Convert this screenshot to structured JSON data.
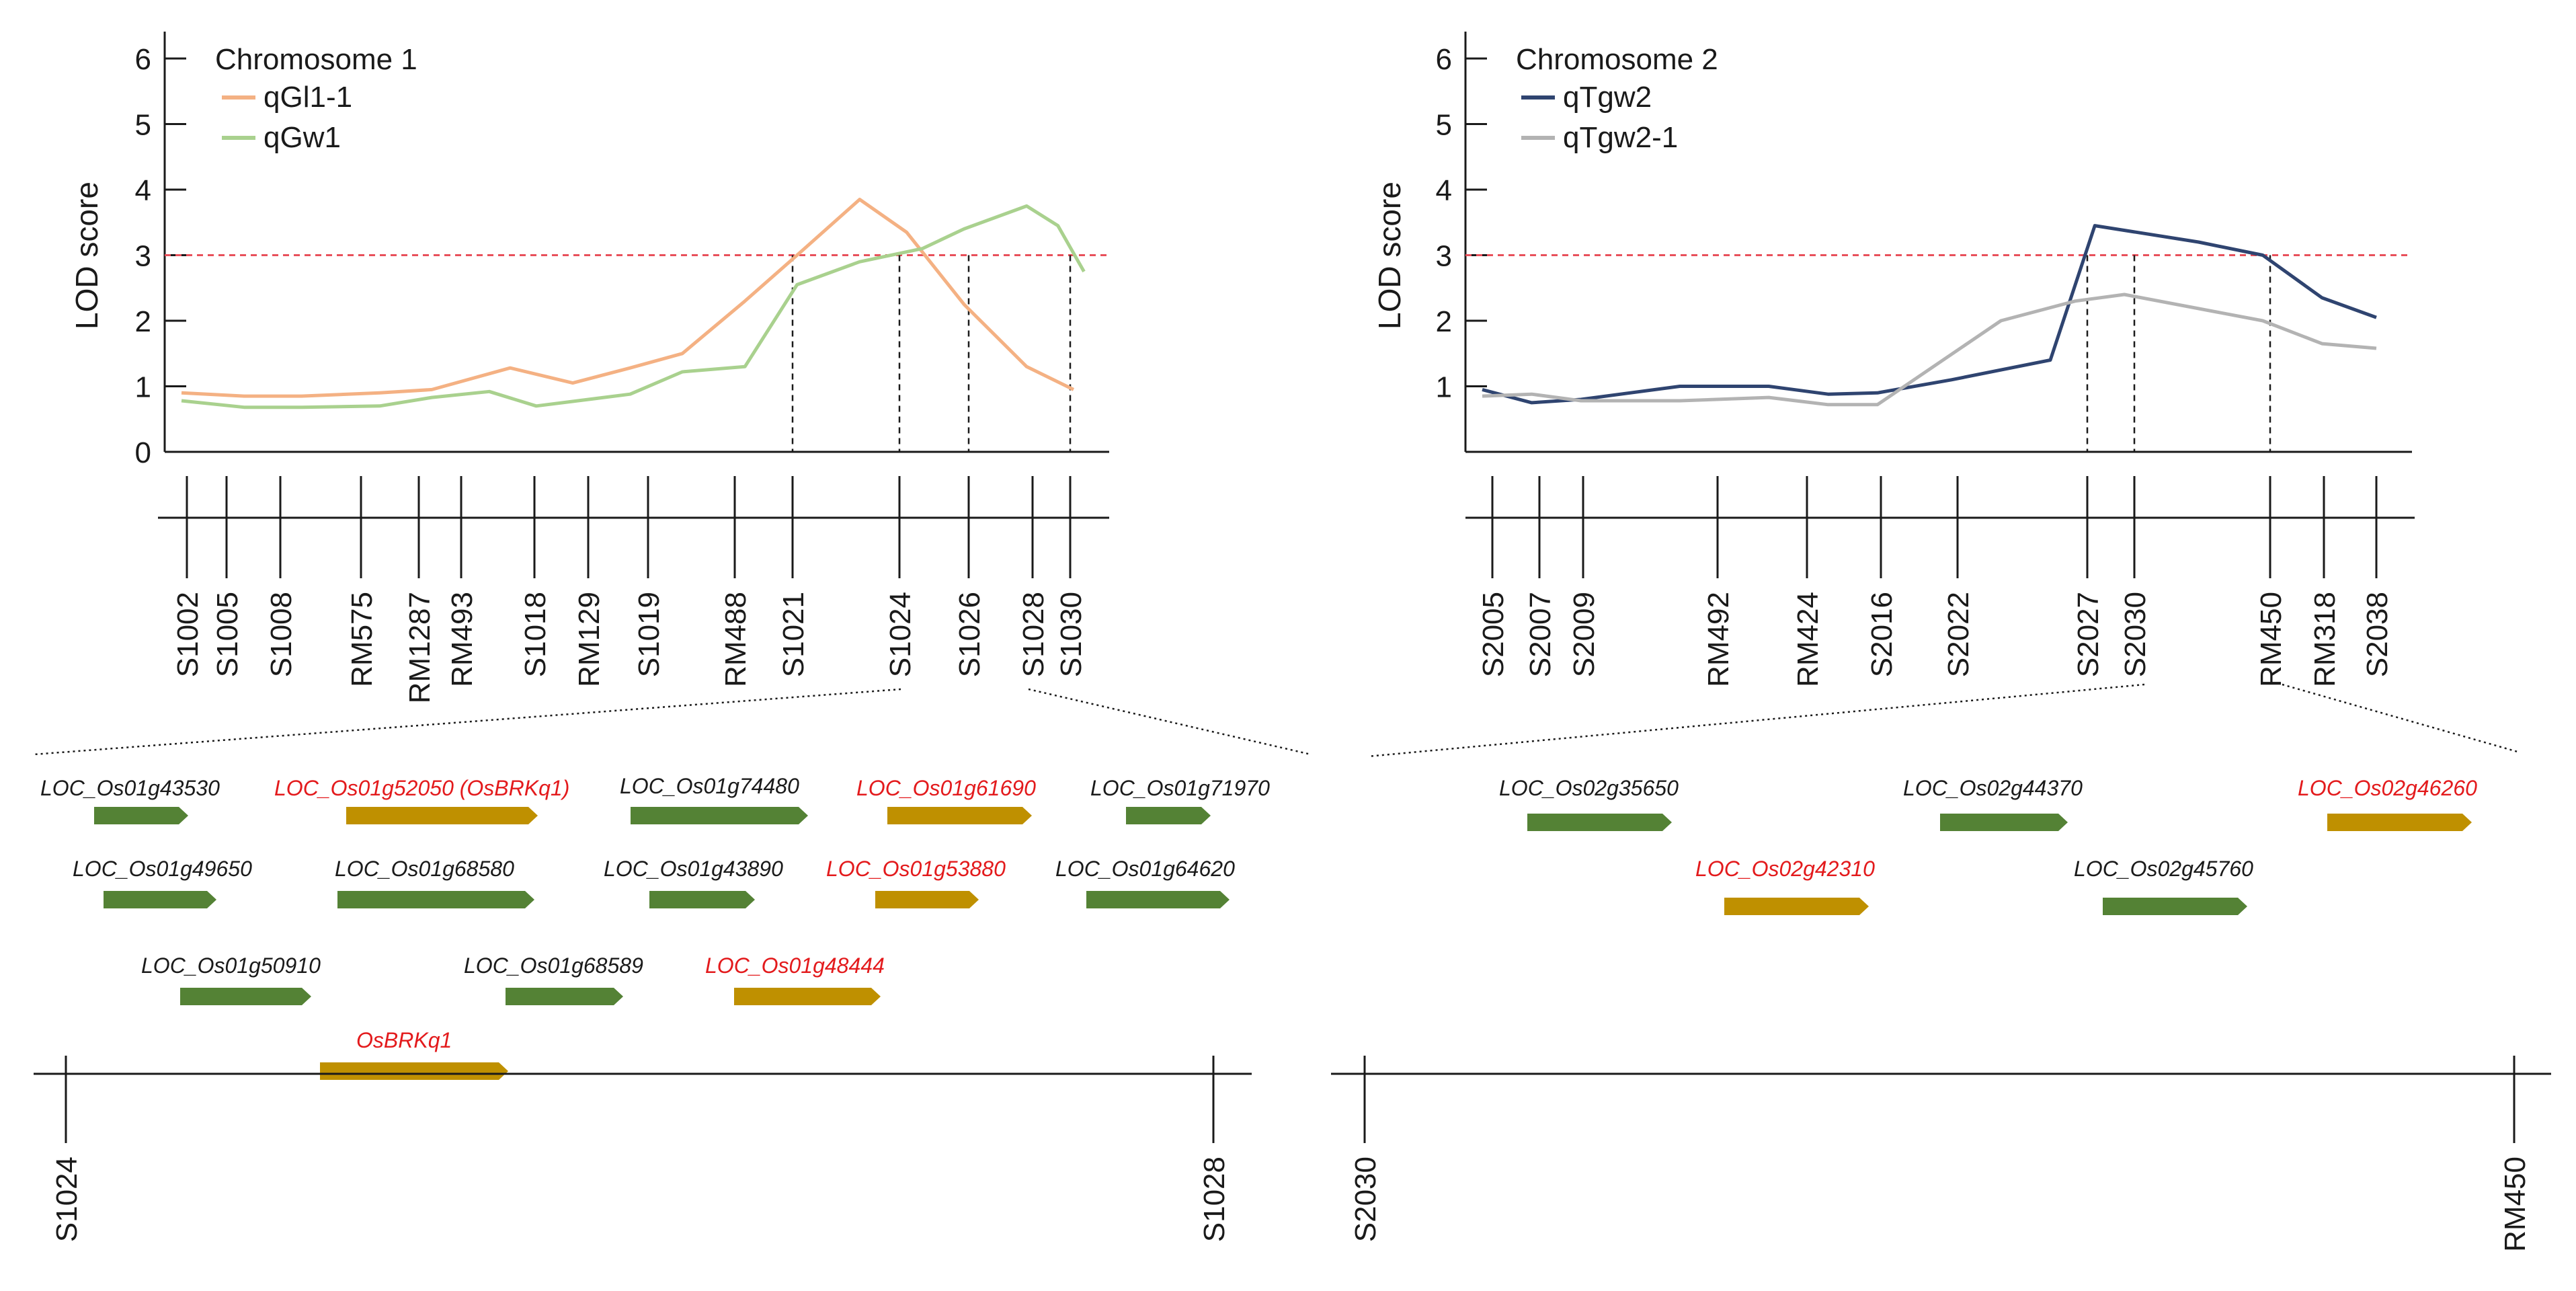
{
  "colors": {
    "threshold": "#e8505b",
    "qGl1_1": "#f4b183",
    "qGw1": "#a9d18e",
    "qTgw2": "#2f4470",
    "qTgw2_1": "#b3b3b3",
    "gene_normal_fill": "#548235",
    "gene_candidate_fill": "#bf9000",
    "gene_normal_text": "#1a1a1a",
    "gene_candidate_text": "#e31a1c",
    "axis": "#1a1a1a"
  },
  "chart_data": [
    {
      "type": "line",
      "title": "Chromosome 1",
      "xlabel": "",
      "ylabel": "LOD score",
      "ylim": [
        0,
        6
      ],
      "yticks": [
        "0",
        "1",
        "2",
        "3",
        "4",
        "5",
        "6"
      ],
      "threshold": 3,
      "markers": [
        "S1002",
        "S1005",
        "S1008",
        "RM575",
        "RM1287",
        "RM493",
        "S1018",
        "RM129",
        "S1019",
        "RM488",
        "S1021",
        "S1024",
        "S1026",
        "S1028",
        "S1030"
      ],
      "series": [
        {
          "name": "qGl1-1",
          "color_key": "qGl1_1",
          "points": [
            [
              0.2,
              0.9
            ],
            [
              1.4,
              0.85
            ],
            [
              2.5,
              0.85
            ],
            [
              4.0,
              0.9
            ],
            [
              5.0,
              0.95
            ],
            [
              6.5,
              1.28
            ],
            [
              7.7,
              1.05
            ],
            [
              8.8,
              1.28
            ],
            [
              9.8,
              1.5
            ],
            [
              11.0,
              2.3
            ],
            [
              12.0,
              3.0
            ],
            [
              13.2,
              3.85
            ],
            [
              14.1,
              3.35
            ],
            [
              15.2,
              2.25
            ],
            [
              16.4,
              1.3
            ],
            [
              17.3,
              0.95
            ]
          ]
        },
        {
          "name": "qGw1",
          "color_key": "qGw1",
          "points": [
            [
              0.2,
              0.78
            ],
            [
              1.4,
              0.68
            ],
            [
              2.5,
              0.68
            ],
            [
              4.0,
              0.7
            ],
            [
              5.0,
              0.83
            ],
            [
              6.1,
              0.92
            ],
            [
              7.0,
              0.7
            ],
            [
              8.8,
              0.88
            ],
            [
              9.8,
              1.22
            ],
            [
              11.0,
              1.3
            ],
            [
              12.0,
              2.55
            ],
            [
              13.2,
              2.9
            ],
            [
              14.4,
              3.1
            ],
            [
              15.2,
              3.4
            ],
            [
              16.4,
              3.75
            ],
            [
              17.0,
              3.45
            ],
            [
              17.5,
              2.75
            ]
          ]
        }
      ],
      "dashed_markers": [
        "S1021",
        "S1024",
        "S1026",
        "S1030"
      ]
    },
    {
      "type": "line",
      "title": "Chromosome 2",
      "xlabel": "",
      "ylabel": "LOD score",
      "ylim": [
        0,
        6
      ],
      "yticks": [
        "1",
        "2",
        "3",
        "4",
        "5",
        "6"
      ],
      "threshold": 3,
      "markers": [
        "S2005",
        "S2007",
        "S2009",
        "RM492",
        "RM424",
        "S2016",
        "S2022",
        "S2027",
        "S2030",
        "RM450",
        "RM318",
        "S2038"
      ],
      "series": [
        {
          "name": "qTgw2",
          "color_key": "qTgw2",
          "points": [
            [
              0.0,
              0.95
            ],
            [
              1.0,
              0.75
            ],
            [
              2.0,
              0.8
            ],
            [
              4.0,
              1.0
            ],
            [
              5.8,
              1.0
            ],
            [
              7.0,
              0.88
            ],
            [
              8.0,
              0.9
            ],
            [
              9.5,
              1.1
            ],
            [
              11.5,
              1.4
            ],
            [
              12.4,
              3.45
            ],
            [
              14.5,
              3.2
            ],
            [
              15.8,
              3.0
            ],
            [
              17.0,
              2.35
            ],
            [
              18.1,
              2.05
            ]
          ]
        },
        {
          "name": "qTgw2-1",
          "color_key": "qTgw2_1",
          "points": [
            [
              0.0,
              0.85
            ],
            [
              1.0,
              0.88
            ],
            [
              2.0,
              0.78
            ],
            [
              4.0,
              0.78
            ],
            [
              5.8,
              0.83
            ],
            [
              7.0,
              0.72
            ],
            [
              8.0,
              0.72
            ],
            [
              10.5,
              2.0
            ],
            [
              12.0,
              2.3
            ],
            [
              13.0,
              2.4
            ],
            [
              15.8,
              2.0
            ],
            [
              17.0,
              1.65
            ],
            [
              18.1,
              1.58
            ]
          ]
        }
      ],
      "dashed_markers": [
        "S2027",
        "S2030",
        "RM450"
      ]
    }
  ],
  "region_1": {
    "left_marker": "S1024",
    "right_marker": "S1028",
    "genes": [
      {
        "id": "LOC_Os01g43530",
        "candidate": false
      },
      {
        "id": "LOC_Os01g52050 (OsBRKq1)",
        "candidate": true
      },
      {
        "id": "LOC_Os01g74480",
        "candidate": false
      },
      {
        "id": "LOC_Os01g61690",
        "candidate": true
      },
      {
        "id": "LOC_Os01g71970",
        "candidate": false
      },
      {
        "id": "LOC_Os01g49650",
        "candidate": false
      },
      {
        "id": "LOC_Os01g68580",
        "candidate": false
      },
      {
        "id": "LOC_Os01g43890",
        "candidate": false
      },
      {
        "id": "LOC_Os01g53880",
        "candidate": true
      },
      {
        "id": "LOC_Os01g64620",
        "candidate": false
      },
      {
        "id": "LOC_Os01g50910",
        "candidate": false
      },
      {
        "id": "LOC_Os01g68589",
        "candidate": false
      },
      {
        "id": "LOC_Os01g48444",
        "candidate": true
      },
      {
        "id": "OsBRKq1",
        "candidate": true
      }
    ]
  },
  "region_2": {
    "left_marker": "S2030",
    "right_marker": "RM450",
    "genes": [
      {
        "id": "LOC_Os02g35650",
        "candidate": false
      },
      {
        "id": "LOC_Os02g44370",
        "candidate": false
      },
      {
        "id": "LOC_Os02g46260",
        "candidate": true
      },
      {
        "id": "LOC_Os02g42310",
        "candidate": true
      },
      {
        "id": "LOC_Os02g45760",
        "candidate": false
      }
    ]
  }
}
